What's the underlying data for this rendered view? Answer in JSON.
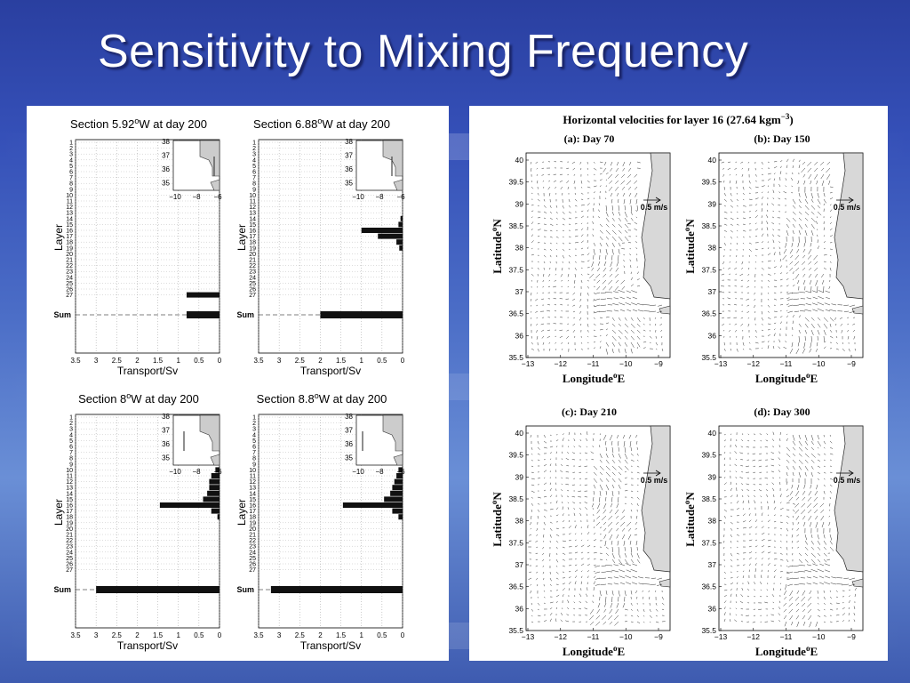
{
  "slide": {
    "title": "Sensitivity to Mixing Frequency"
  },
  "left_figure": {
    "layer_labels": [
      "1",
      "2",
      "3",
      "4",
      "5",
      "6",
      "7",
      "8",
      "9",
      "10",
      "11",
      "12",
      "13",
      "14",
      "15",
      "16",
      "17",
      "18",
      "19",
      "20",
      "21",
      "22",
      "23",
      "24",
      "25",
      "26",
      "27"
    ],
    "sum_label": "Sum",
    "ylabel": "Layer",
    "xlabel": "Transport/Sv",
    "xticks": [
      "3.5",
      "3",
      "2.5",
      "2",
      "1.5",
      "1",
      "0.5",
      "0"
    ],
    "inset": {
      "yticks": [
        "38",
        "37",
        "36",
        "35"
      ],
      "xticks": [
        "−10",
        "−8",
        "−6"
      ]
    }
  },
  "right_figure": {
    "title": "Horizontal velocities for layer 16 (27.64 kgm",
    "title_exp": "−3",
    "title_close": ")",
    "xlabel": "Longitude",
    "xlabel_sup": "o",
    "xlabel_suffix": "E",
    "ylabel": "Latitude",
    "ylabel_sup": "o",
    "ylabel_suffix": "N",
    "scale_label": "0.5 m/s",
    "yticks": [
      "40",
      "39.5",
      "39",
      "38.5",
      "38",
      "37.5",
      "37",
      "36.5",
      "36",
      "35.5"
    ],
    "xticks": [
      "−13",
      "−12",
      "−11",
      "−10",
      "−9"
    ],
    "maps": [
      {
        "title": "(a): Day 70"
      },
      {
        "title": "(b): Day 150"
      },
      {
        "title": "(c): Day 210"
      },
      {
        "title": "(d): Day 300"
      }
    ]
  },
  "chart_data": [
    {
      "type": "bar",
      "title": "Section 5.92",
      "title_sup": "o",
      "title_suffix": "W at day 200",
      "orientation": "horizontal",
      "xlabel": "Transport/Sv",
      "ylabel": "Layer",
      "xlim": [
        3.5,
        0
      ],
      "x_reversed": true,
      "categories": [
        "1",
        "2",
        "3",
        "4",
        "5",
        "6",
        "7",
        "8",
        "9",
        "10",
        "11",
        "12",
        "13",
        "14",
        "15",
        "16",
        "17",
        "18",
        "19",
        "20",
        "21",
        "22",
        "23",
        "24",
        "25",
        "26",
        "27",
        "Sum"
      ],
      "values": [
        0,
        0,
        0,
        0,
        0,
        0,
        0,
        0,
        0,
        0,
        0,
        0,
        0,
        0,
        0,
        0,
        0,
        0,
        0,
        0,
        0,
        0,
        0,
        0,
        0,
        0,
        0.8,
        0.8
      ]
    },
    {
      "type": "bar",
      "title": "Section 6.88",
      "title_sup": "o",
      "title_suffix": "W at day 200",
      "orientation": "horizontal",
      "xlabel": "Transport/Sv",
      "ylabel": "Layer",
      "xlim": [
        3.5,
        0
      ],
      "x_reversed": true,
      "categories": [
        "1",
        "2",
        "3",
        "4",
        "5",
        "6",
        "7",
        "8",
        "9",
        "10",
        "11",
        "12",
        "13",
        "14",
        "15",
        "16",
        "17",
        "18",
        "19",
        "20",
        "21",
        "22",
        "23",
        "24",
        "25",
        "26",
        "27",
        "Sum"
      ],
      "values": [
        0,
        0,
        0,
        0,
        0,
        0,
        0,
        0,
        0,
        0,
        0,
        0,
        0,
        0.05,
        0.1,
        1.0,
        0.6,
        0.15,
        0.08,
        0,
        0,
        0,
        0,
        0,
        0,
        0,
        0,
        2.0
      ]
    },
    {
      "type": "bar",
      "title": "Section 8",
      "title_sup": "o",
      "title_suffix": "W at day 200",
      "orientation": "horizontal",
      "xlabel": "Transport/Sv",
      "ylabel": "Layer",
      "xlim": [
        3.5,
        0
      ],
      "x_reversed": true,
      "categories": [
        "1",
        "2",
        "3",
        "4",
        "5",
        "6",
        "7",
        "8",
        "9",
        "10",
        "11",
        "12",
        "13",
        "14",
        "15",
        "16",
        "17",
        "18",
        "19",
        "20",
        "21",
        "22",
        "23",
        "24",
        "25",
        "26",
        "27",
        "Sum"
      ],
      "values": [
        0,
        0,
        0,
        0,
        0,
        0,
        0,
        0,
        0,
        0.1,
        0.2,
        0.25,
        0.25,
        0.3,
        0.4,
        1.45,
        0.2,
        0.05,
        0,
        0,
        0,
        0,
        0,
        0,
        0,
        0,
        0,
        3.0
      ]
    },
    {
      "type": "bar",
      "title": "Section 8.8",
      "title_sup": "o",
      "title_suffix": "W at day 200",
      "orientation": "horizontal",
      "xlabel": "Transport/Sv",
      "ylabel": "Layer",
      "xlim": [
        3.5,
        0
      ],
      "x_reversed": true,
      "categories": [
        "1",
        "2",
        "3",
        "4",
        "5",
        "6",
        "7",
        "8",
        "9",
        "10",
        "11",
        "12",
        "13",
        "14",
        "15",
        "16",
        "17",
        "18",
        "19",
        "20",
        "21",
        "22",
        "23",
        "24",
        "25",
        "26",
        "27",
        "Sum"
      ],
      "values": [
        0,
        0,
        0,
        0,
        0,
        0,
        0,
        0,
        0,
        0.1,
        0.15,
        0.2,
        0.25,
        0.3,
        0.45,
        1.45,
        0.25,
        0.1,
        0,
        0,
        0,
        0,
        0,
        0,
        0,
        0,
        0,
        3.2
      ]
    }
  ]
}
